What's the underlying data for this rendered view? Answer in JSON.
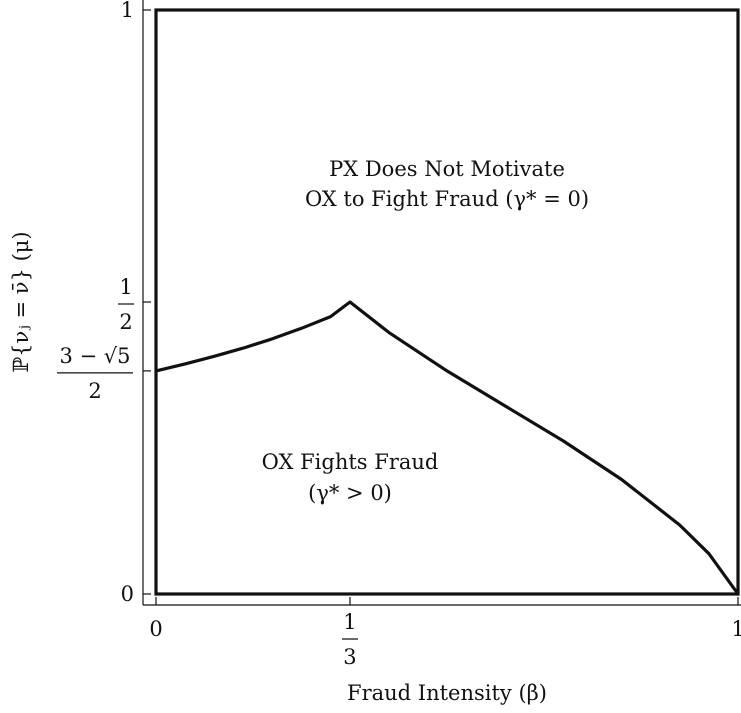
{
  "chart_data": {
    "type": "line",
    "xlabel": "Fraud Intensity (β)",
    "ylabel": "ℙ{νⱼ = ν̄} (μ)",
    "xlim": [
      0,
      1
    ],
    "ylim": [
      0,
      1
    ],
    "x_ticks": [
      {
        "value": 0,
        "label": "0"
      },
      {
        "value": 0.3333,
        "label_num": "1",
        "label_den": "3"
      },
      {
        "value": 1,
        "label": "1"
      }
    ],
    "y_ticks": [
      {
        "value": 0,
        "label": "0"
      },
      {
        "value": 0.382,
        "label_num": "3 − √5",
        "label_den": "2"
      },
      {
        "value": 0.5,
        "label_num": "1",
        "label_den": "2"
      },
      {
        "value": 1,
        "label": "1"
      }
    ],
    "series": [
      {
        "x": [
          0,
          0.05,
          0.1,
          0.15,
          0.2,
          0.25,
          0.3,
          0.3333,
          0.4,
          0.5,
          0.6,
          0.7,
          0.8,
          0.9,
          0.95,
          1.0
        ],
        "y": [
          0.382,
          0.394,
          0.407,
          0.421,
          0.437,
          0.455,
          0.475,
          0.5,
          0.448,
          0.382,
          0.322,
          0.262,
          0.196,
          0.118,
          0.069,
          0.0
        ]
      }
    ],
    "annotations": {
      "upper_region": [
        "PX Does Not Motivate",
        "OX to Fight Fraud (γ* = 0)"
      ],
      "lower_region": [
        "OX Fights Fraud",
        "(γ* > 0)"
      ]
    },
    "grid": false
  }
}
